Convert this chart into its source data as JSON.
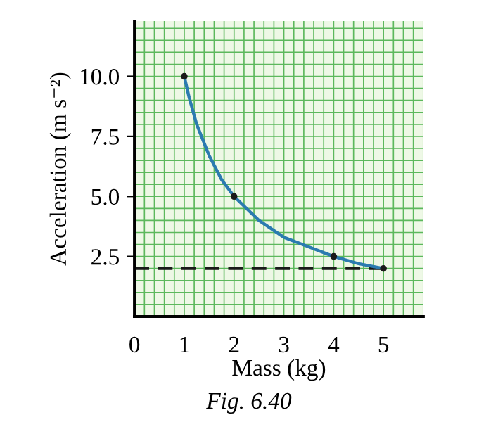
{
  "chart_data": {
    "type": "line",
    "xlabel": "Mass (kg)",
    "ylabel": "Acceleration (m s⁻²)",
    "annotations": [
      "Fig. 6.40"
    ],
    "series": [
      {
        "color": "#2b7bb0",
        "x": [
          1,
          1.1,
          1.25,
          1.5,
          1.75,
          2,
          2.5,
          3,
          3.5,
          4,
          4.5,
          5
        ],
        "values": [
          10,
          9.1,
          8,
          6.7,
          5.7,
          5,
          4,
          3.3,
          2.9,
          2.5,
          2.2,
          2
        ],
        "marker": "none"
      },
      {
        "type": "scatter",
        "color": "#1a1a1a",
        "x": [
          1,
          2,
          4,
          5
        ],
        "values": [
          10,
          5,
          2.5,
          2
        ],
        "marker": "circle"
      }
    ],
    "ref_lines": [
      {
        "axis": "y",
        "value": 2,
        "color": "#1a1a1a",
        "line_style": "dashed"
      }
    ],
    "xlim": [
      0,
      5.8
    ],
    "ylim": [
      0,
      12.3
    ],
    "xticks": [
      0,
      1,
      2,
      3,
      4,
      5
    ],
    "yticks": [
      2.5,
      {
        "value": 5,
        "label": "5.0"
      },
      7.5,
      {
        "value": 10,
        "label": "10.0"
      }
    ],
    "grid": true
  }
}
